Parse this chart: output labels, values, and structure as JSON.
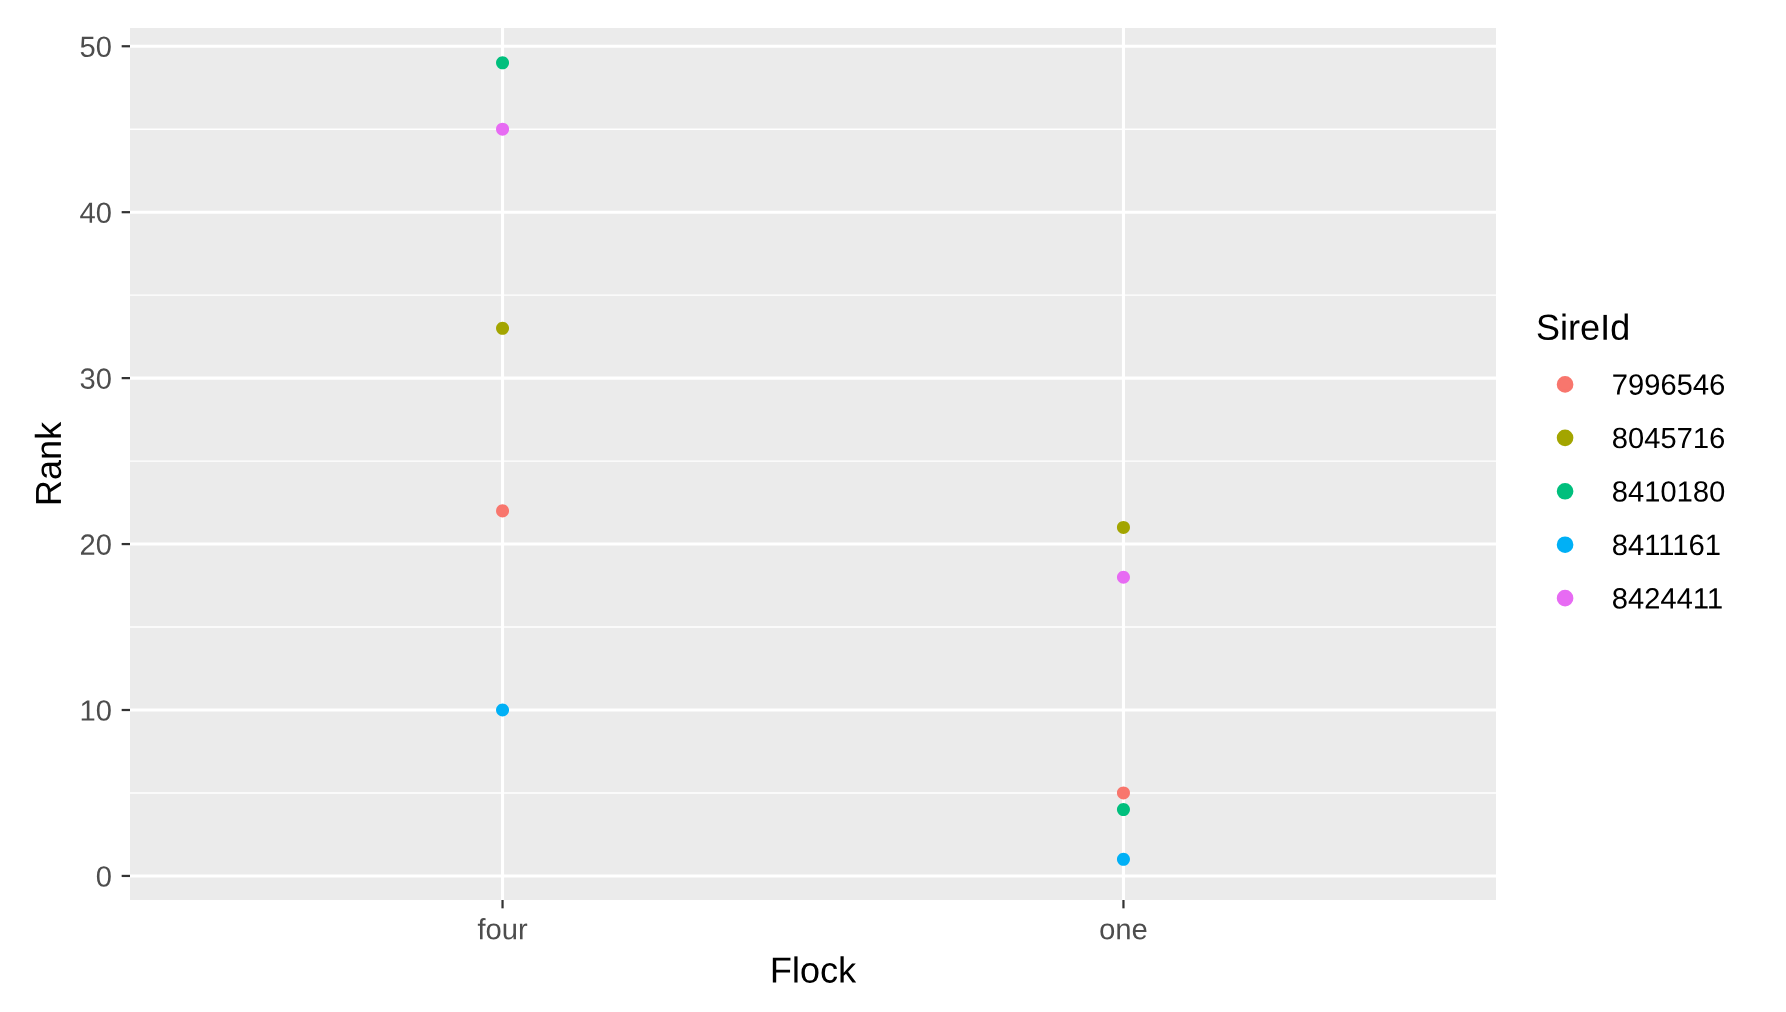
{
  "chart_data": {
    "type": "scatter",
    "xlabel": "Flock",
    "ylabel": "Rank",
    "legend_title": "SireId",
    "categories": [
      "four",
      "one"
    ],
    "series": [
      {
        "name": "7996546",
        "color": "#f8766d",
        "values": [
          22,
          5
        ]
      },
      {
        "name": "8045716",
        "color": "#a3a500",
        "values": [
          33,
          21
        ]
      },
      {
        "name": "8410180",
        "color": "#00bf7d",
        "values": [
          49,
          4
        ]
      },
      {
        "name": "8411161",
        "color": "#00b0f6",
        "values": [
          10,
          1
        ]
      },
      {
        "name": "8424411",
        "color": "#e76bf3",
        "values": [
          45,
          18
        ]
      }
    ],
    "ylim": [
      -1.45,
      51.1
    ],
    "yticks": [
      0,
      10,
      20,
      30,
      40,
      50
    ],
    "grid": true,
    "legend": "right",
    "marker": "circle"
  }
}
